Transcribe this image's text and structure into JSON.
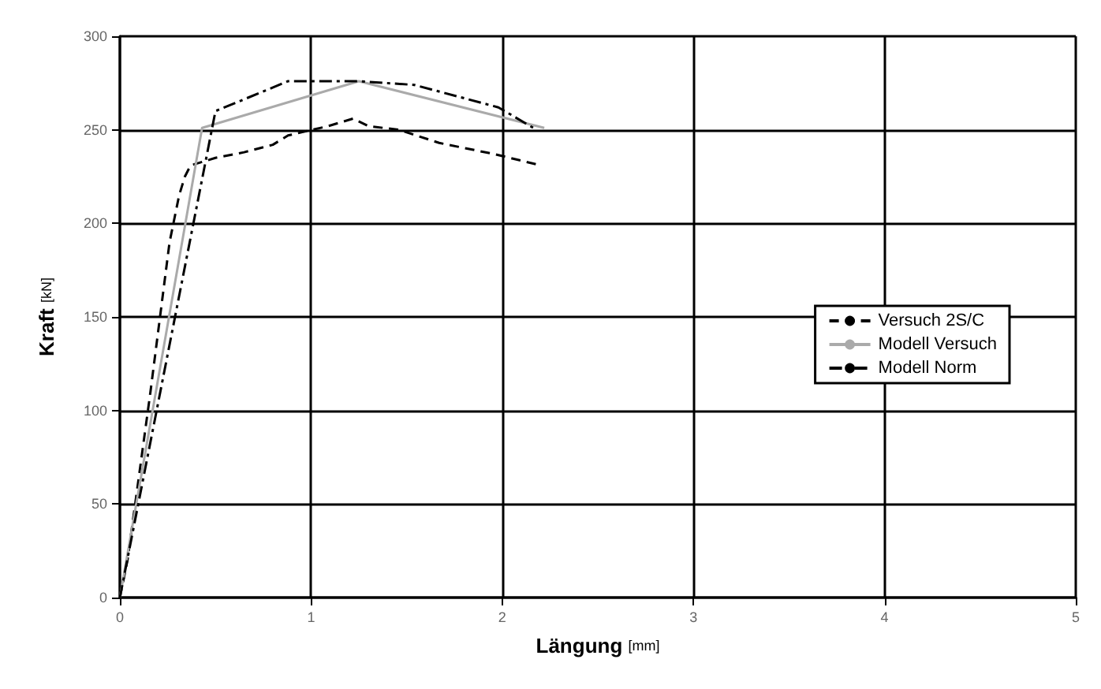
{
  "chart_data": {
    "type": "line",
    "xlabel": "Längung [mm]",
    "ylabel": "Kraft [kN]",
    "xlim": [
      0,
      5
    ],
    "xticks": [
      0,
      1,
      2,
      3,
      4,
      5
    ],
    "ylim": [
      0,
      300
    ],
    "yticks": [
      0,
      50,
      100,
      150,
      200,
      250,
      300
    ],
    "grid": true,
    "legend": "right",
    "marker": "none",
    "series": [
      {
        "name": "Versuch 2S/C",
        "color": "#000000",
        "line_style": "dashed",
        "x": [
          0,
          0.04,
          0.08,
          0.12,
          0.16,
          0.21,
          0.26,
          0.31,
          0.34,
          0.37,
          0.5,
          0.65,
          0.8,
          0.88,
          1.09,
          1.22,
          1.3,
          1.46,
          1.67,
          1.96,
          2.2
        ],
        "values": [
          0,
          20,
          50,
          80,
          110,
          150,
          190,
          215,
          225,
          231,
          235,
          238,
          242,
          247,
          252,
          256,
          252,
          250,
          243,
          237,
          231
        ]
      },
      {
        "name": "Modell Versuch",
        "color": "#aaaaaa",
        "line_style": "solid",
        "x": [
          0,
          0.43,
          1.25,
          2.22
        ],
        "values": [
          0,
          251,
          276,
          251
        ]
      },
      {
        "name": "Modell Norm",
        "color": "#000000",
        "line_style": "dotted",
        "x": [
          0,
          0.5,
          0.88,
          1.25,
          1.54,
          1.98,
          2.18
        ],
        "values": [
          0,
          260,
          276,
          276,
          274,
          262,
          250
        ]
      }
    ]
  }
}
